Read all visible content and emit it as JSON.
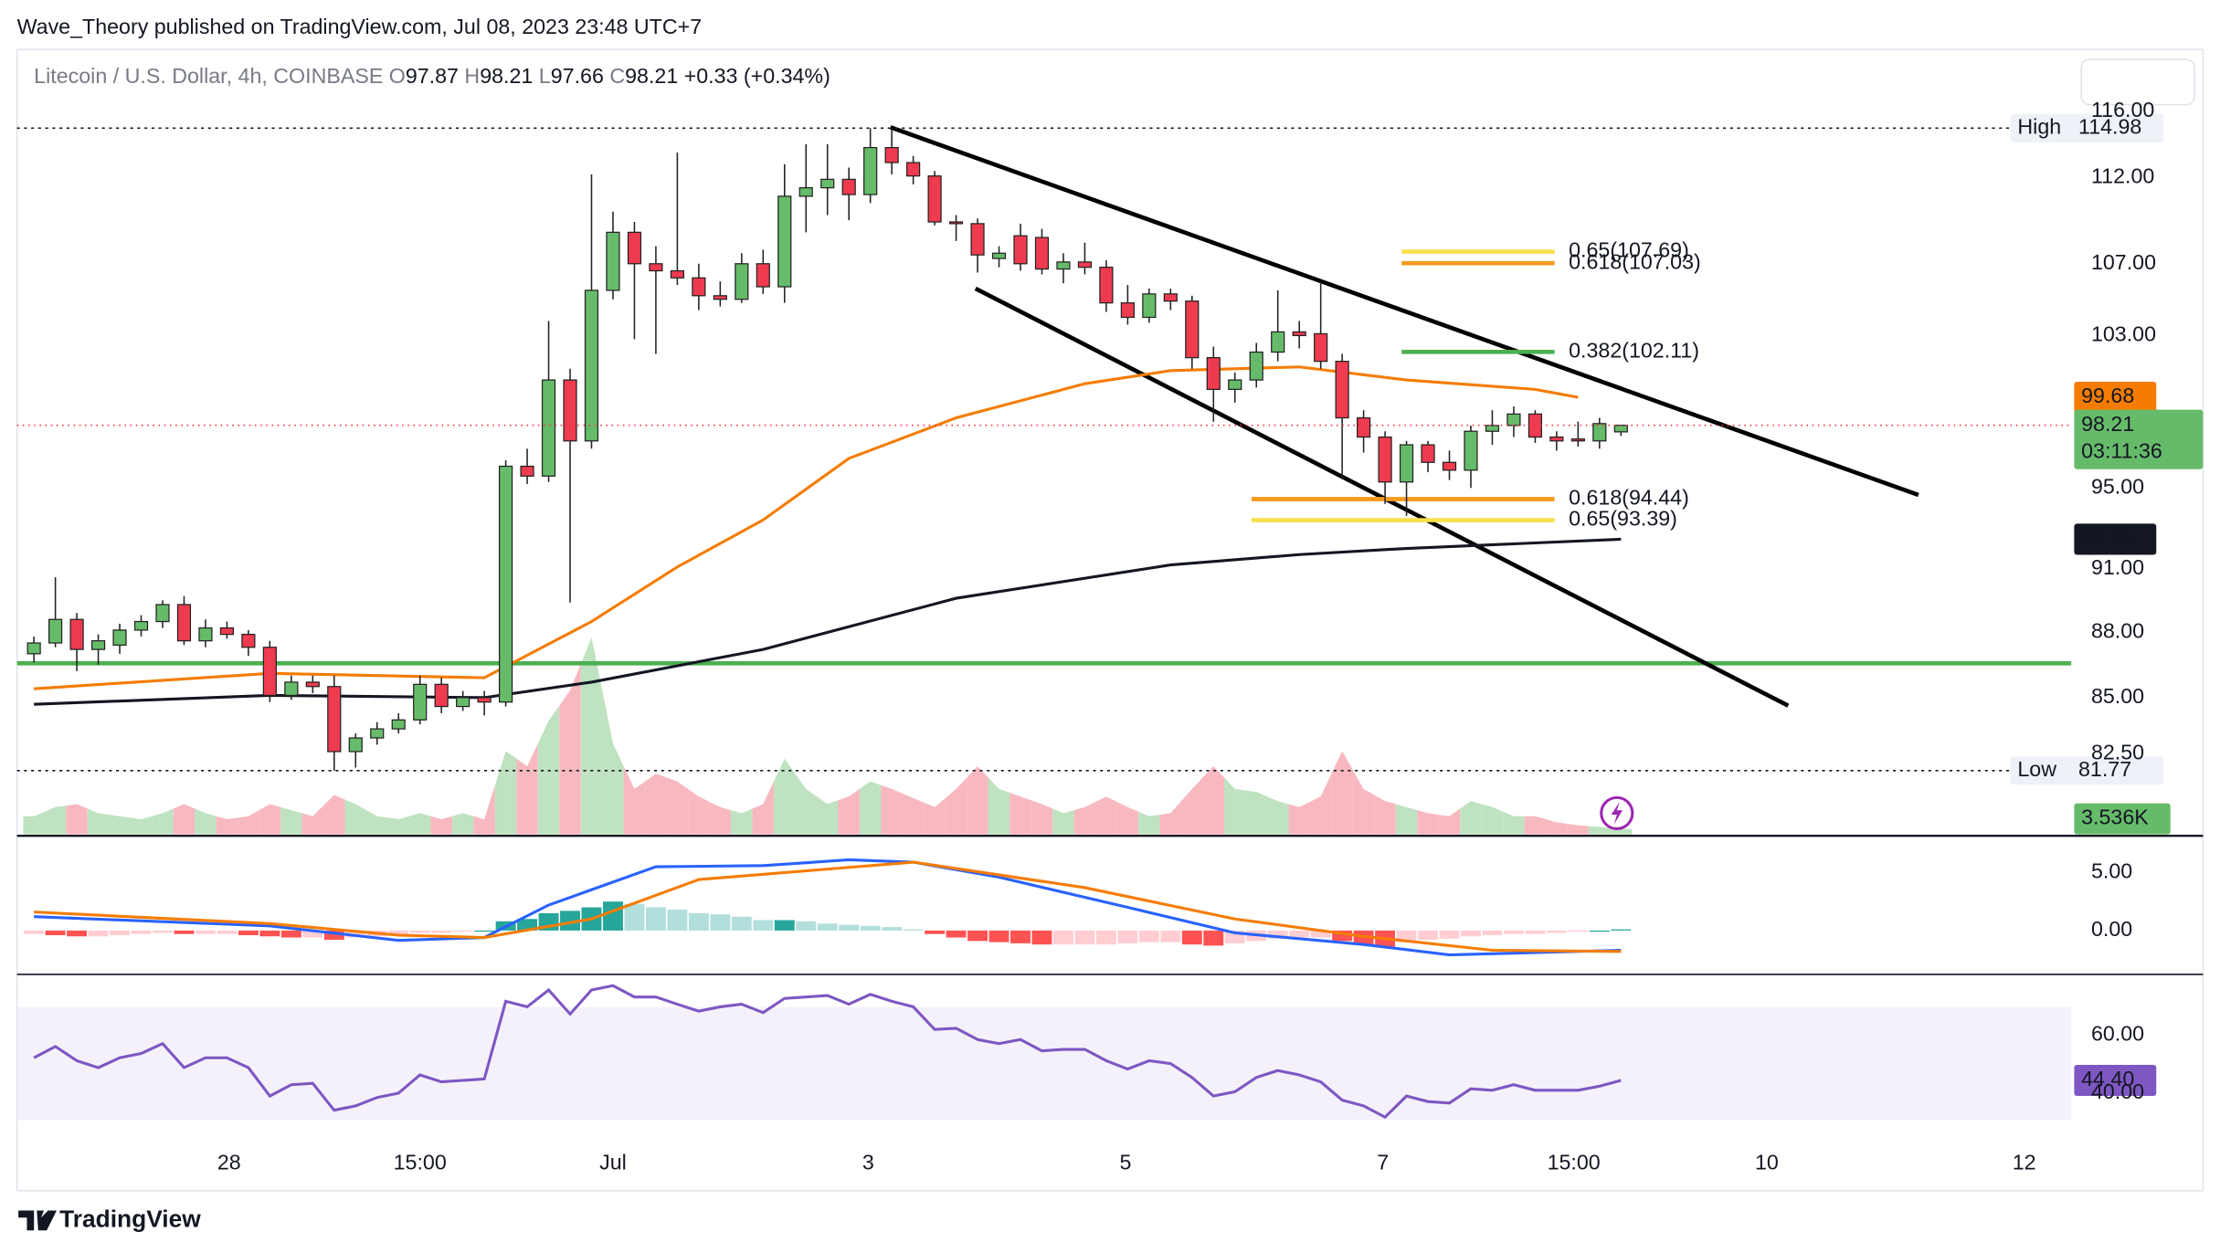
{
  "chart_data": {
    "type": "candlestick",
    "published": "Wave_Theory published on TradingView.com, Jul 08, 2023 23:48 UTC+7",
    "symbol": "Litecoin / U.S. Dollar, 4h, COINBASE",
    "ohlc_keys": [
      "O",
      "H",
      "L",
      "C"
    ],
    "change": "+0.33 (+0.34%)",
    "brand": "TradingView",
    "up_color": "#66bb6a",
    "down_color": "#ef3b4f",
    "border_color": "#222222",
    "x": [
      0,
      1,
      2,
      3,
      4,
      5,
      6,
      7,
      8,
      9,
      10,
      11,
      12,
      13,
      14,
      15,
      16,
      17,
      18,
      19,
      20,
      21,
      22,
      23,
      24,
      25,
      26,
      27,
      28,
      29,
      30,
      31,
      32,
      33,
      34,
      35,
      36,
      37,
      38,
      39,
      40,
      41,
      42,
      43,
      44,
      45,
      46,
      47,
      48,
      49,
      50,
      51,
      52,
      53,
      54,
      55,
      56,
      57,
      58,
      59,
      60,
      61,
      62,
      63,
      64,
      65,
      66,
      67,
      68,
      69,
      70,
      71,
      72,
      73,
      74
    ],
    "open": [
      87.0,
      87.5,
      88.6,
      87.2,
      87.4,
      88.1,
      88.5,
      89.3,
      87.6,
      88.2,
      87.9,
      87.3,
      85.1,
      85.7,
      85.5,
      82.6,
      83.2,
      83.6,
      84.0,
      85.6,
      84.6,
      85.0,
      84.8,
      96.1,
      95.6,
      100.6,
      97.4,
      105.5,
      108.8,
      107.0,
      106.6,
      106.2,
      105.2,
      105.0,
      107.0,
      105.7,
      110.9,
      111.4,
      111.9,
      111.0,
      113.8,
      112.9,
      112.1,
      109.4,
      109.3,
      107.3,
      108.6,
      108.5,
      106.7,
      107.1,
      106.8,
      104.8,
      104.0,
      105.3,
      104.9,
      101.8,
      100.1,
      100.6,
      102.1,
      103.2,
      103.1,
      101.6,
      98.6,
      97.6,
      95.3,
      97.2,
      96.3,
      95.9,
      97.9,
      98.2,
      98.8,
      97.6,
      97.5,
      97.4,
      97.87
    ],
    "high": [
      87.8,
      90.6,
      88.9,
      87.9,
      88.4,
      88.8,
      89.5,
      89.7,
      88.6,
      88.5,
      88.1,
      87.6,
      86.0,
      86.0,
      86.0,
      83.4,
      83.9,
      84.3,
      86.0,
      85.9,
      85.3,
      85.3,
      96.4,
      97.0,
      103.8,
      101.2,
      112.2,
      110.0,
      109.4,
      108.0,
      113.5,
      107.0,
      106.0,
      107.6,
      107.8,
      112.8,
      114.0,
      114.0,
      112.6,
      114.98,
      114.98,
      113.3,
      112.4,
      109.8,
      109.6,
      108.0,
      109.3,
      109.0,
      107.6,
      108.2,
      107.2,
      105.8,
      105.6,
      105.6,
      105.2,
      102.4,
      101.0,
      102.6,
      105.5,
      103.8,
      106.0,
      102.0,
      99.0,
      97.9,
      97.4,
      97.4,
      96.9,
      98.2,
      99.0,
      99.2,
      99.0,
      97.9,
      98.4,
      98.6,
      98.21
    ],
    "low": [
      86.6,
      87.3,
      86.2,
      86.5,
      87.0,
      87.8,
      88.2,
      87.4,
      87.3,
      87.7,
      86.9,
      84.8,
      84.9,
      85.2,
      81.77,
      81.9,
      82.9,
      83.4,
      83.8,
      84.3,
      84.4,
      84.2,
      84.6,
      95.2,
      95.3,
      89.4,
      97.0,
      105.0,
      102.8,
      102.0,
      105.8,
      104.4,
      104.6,
      104.8,
      105.3,
      104.8,
      108.8,
      109.8,
      109.5,
      110.5,
      112.2,
      111.6,
      109.2,
      108.3,
      106.5,
      106.8,
      106.6,
      106.4,
      105.9,
      106.4,
      104.3,
      103.6,
      103.7,
      104.4,
      101.2,
      98.4,
      99.4,
      100.2,
      101.6,
      102.3,
      101.2,
      95.5,
      96.8,
      94.2,
      93.6,
      95.8,
      95.4,
      95.0,
      97.2,
      97.6,
      97.3,
      96.9,
      97.1,
      97.0,
      97.66
    ],
    "close": [
      87.5,
      88.6,
      87.2,
      87.6,
      88.1,
      88.5,
      89.3,
      87.6,
      88.2,
      87.9,
      87.3,
      85.1,
      85.7,
      85.5,
      82.6,
      83.2,
      83.6,
      84.0,
      85.6,
      84.6,
      85.0,
      84.8,
      96.1,
      95.6,
      100.6,
      97.4,
      105.5,
      108.8,
      107.0,
      106.6,
      106.2,
      105.2,
      105.0,
      107.0,
      105.7,
      110.9,
      111.4,
      111.9,
      111.0,
      113.8,
      112.9,
      112.1,
      109.4,
      109.3,
      107.5,
      107.6,
      107.0,
      106.7,
      107.1,
      106.8,
      104.8,
      104.0,
      105.3,
      104.9,
      101.8,
      100.1,
      100.6,
      102.1,
      103.2,
      103.0,
      101.6,
      98.6,
      97.6,
      95.3,
      97.2,
      96.3,
      95.9,
      97.9,
      98.2,
      98.8,
      97.6,
      97.4,
      97.4,
      98.3,
      98.21
    ],
    "xlim": [
      -0.79,
      95.0
    ],
    "xticks": [
      {
        "value": 9.1,
        "label": "28"
      },
      {
        "value": 18,
        "label": "15:00"
      },
      {
        "value": 27,
        "label": "Jul"
      },
      {
        "value": 38.9,
        "label": "3"
      },
      {
        "value": 50.9,
        "label": "5"
      },
      {
        "value": 62.9,
        "label": "7"
      },
      {
        "value": 71.8,
        "label": "15:00"
      },
      {
        "value": 80.8,
        "label": "10"
      },
      {
        "value": 92.8,
        "label": "12"
      }
    ],
    "ylim": [
      79.05,
      119.7
    ],
    "log": true,
    "grid": false,
    "yticks": [
      {
        "value": 116,
        "label": "116.00"
      },
      {
        "value": 112,
        "label": "112.00"
      },
      {
        "value": 107,
        "label": "107.00"
      },
      {
        "value": 103,
        "label": "103.00"
      },
      {
        "value": 95,
        "label": "95.00"
      },
      {
        "value": 91,
        "label": "91.00"
      },
      {
        "value": 88,
        "label": "88.00"
      },
      {
        "value": 85,
        "label": "85.00"
      },
      {
        "value": 82.5,
        "label": "82.50"
      }
    ],
    "high_label": "High",
    "low_label": "Low",
    "countdown": "03:11:36",
    "ma": [
      {
        "color": "#f57c00",
        "x": [
          0,
          11,
          21,
          26,
          30,
          34,
          38,
          43,
          49,
          53,
          59,
          64,
          70,
          72
        ],
        "values": [
          85.4,
          86.1,
          85.9,
          88.5,
          91.1,
          93.4,
          96.5,
          98.6,
          100.4,
          101.1,
          101.3,
          100.6,
          100.1,
          99.68
        ]
      },
      {
        "color": "#131722",
        "x": [
          0,
          11,
          21,
          26,
          34,
          43,
          53,
          59,
          64,
          74
        ],
        "values": [
          84.7,
          85.1,
          85.0,
          85.7,
          87.2,
          89.6,
          91.2,
          91.7,
          92.0,
          92.45
        ]
      }
    ],
    "fib_levels": [
      {
        "value": 107.69,
        "label": "0.65(107.69)",
        "color": "#f7e04b"
      },
      {
        "value": 107.03,
        "label": "0.618(107.03)",
        "color": "#f59a1f"
      },
      {
        "value": 102.11,
        "label": "0.382(102.11)",
        "color": "#4caf50"
      },
      {
        "value": 94.44,
        "label": "0.618(94.44)",
        "color": "#f59a1f"
      },
      {
        "value": 93.39,
        "label": "0.65(93.39)",
        "color": "#f7e04b"
      }
    ],
    "volume": {
      "ylim": [
        0,
        140
      ],
      "up_color": "#bfe2c0",
      "down_color": "#f8b8c0",
      "last_label": "3.536K",
      "values": [
        12,
        18,
        20,
        14,
        12,
        10,
        14,
        20,
        14,
        10,
        12,
        20,
        16,
        12,
        26,
        20,
        12,
        10,
        14,
        10,
        14,
        10,
        55,
        45,
        75,
        95,
        130,
        60,
        30,
        40,
        35,
        25,
        18,
        14,
        20,
        50,
        30,
        20,
        25,
        35,
        30,
        24,
        18,
        30,
        45,
        30,
        25,
        20,
        14,
        18,
        25,
        18,
        12,
        14,
        30,
        45,
        30,
        28,
        22,
        18,
        25,
        55,
        30,
        22,
        18,
        14,
        12,
        22,
        18,
        12,
        12,
        8,
        6,
        5,
        3.536
      ]
    },
    "macd": {
      "ylim": [
        -3.66,
        8.05
      ],
      "yticks": [
        {
          "value": 5,
          "label": "5.00"
        },
        {
          "value": 0,
          "label": "0.00"
        }
      ],
      "hist_colors": [
        "#26a69a",
        "#b2dfdb",
        "#ff5252",
        "#ffcdd2"
      ],
      "histogram": [
        -0.3,
        -0.4,
        -0.5,
        -0.5,
        -0.4,
        -0.3,
        -0.2,
        -0.3,
        -0.3,
        -0.3,
        -0.4,
        -0.5,
        -0.6,
        -0.6,
        -0.8,
        -0.6,
        -0.5,
        -0.4,
        -0.2,
        -0.2,
        -0.1,
        0.0,
        0.8,
        1.0,
        1.5,
        1.7,
        2.0,
        2.5,
        2.3,
        2.0,
        1.8,
        1.5,
        1.4,
        1.2,
        0.9,
        0.9,
        0.8,
        0.6,
        0.5,
        0.4,
        0.3,
        0.1,
        -0.3,
        -0.6,
        -0.9,
        -1.0,
        -1.1,
        -1.2,
        -1.2,
        -1.2,
        -1.2,
        -1.1,
        -1.0,
        -1.0,
        -1.2,
        -1.3,
        -1.1,
        -0.9,
        -0.7,
        -0.6,
        -0.6,
        -0.9,
        -1.2,
        -1.4,
        -1.0,
        -0.8,
        -0.7,
        -0.5,
        -0.4,
        -0.3,
        -0.3,
        -0.2,
        -0.1,
        0.0,
        0.1
      ],
      "lines": [
        {
          "color": "#2962ff",
          "x": [
            0,
            11,
            17,
            21,
            24,
            29,
            34,
            38,
            41,
            45,
            51,
            56,
            62,
            66,
            74
          ],
          "values": [
            1.2,
            0.4,
            -0.85,
            -0.6,
            2.2,
            5.5,
            5.6,
            6.1,
            5.9,
            4.6,
            2.0,
            -0.2,
            -1.2,
            -2.1,
            -1.7
          ]
        },
        {
          "color": "#f57c00",
          "x": [
            0,
            11,
            17,
            21,
            26,
            31,
            41,
            49,
            56,
            62,
            68,
            74
          ],
          "values": [
            1.6,
            0.6,
            -0.4,
            -0.6,
            1.0,
            4.4,
            5.9,
            3.7,
            1.0,
            -0.5,
            -1.7,
            -1.8
          ]
        }
      ]
    },
    "rsi": {
      "ylim": [
        26.8,
        80.5
      ],
      "yticks": [
        {
          "value": 60,
          "label": "60.00"
        },
        {
          "value": 40,
          "label": "40.00"
        }
      ],
      "color": "#7e57c2",
      "last_label": "44.40",
      "values": [
        52.2,
        56.1,
        51.2,
        48.8,
        52.2,
        53.7,
        57.1,
        48.8,
        52.2,
        52.2,
        48.8,
        39.0,
        42.9,
        43.4,
        34.1,
        35.6,
        38.5,
        40.0,
        46.3,
        43.9,
        44.4,
        44.9,
        71.7,
        69.8,
        75.6,
        67.3,
        75.6,
        77.1,
        73.2,
        73.2,
        70.7,
        68.3,
        69.8,
        70.7,
        67.8,
        72.7,
        73.2,
        73.7,
        70.7,
        74.1,
        71.7,
        69.8,
        62.0,
        62.4,
        58.5,
        57.1,
        58.5,
        54.6,
        55.1,
        55.1,
        51.2,
        48.3,
        51.2,
        50.2,
        45.4,
        39.0,
        40.5,
        45.4,
        47.8,
        46.3,
        43.9,
        37.6,
        35.6,
        31.7,
        39.0,
        37.1,
        36.6,
        41.5,
        41.0,
        42.9,
        41.0,
        41.0,
        41.0,
        42.4,
        44.4
      ]
    }
  }
}
